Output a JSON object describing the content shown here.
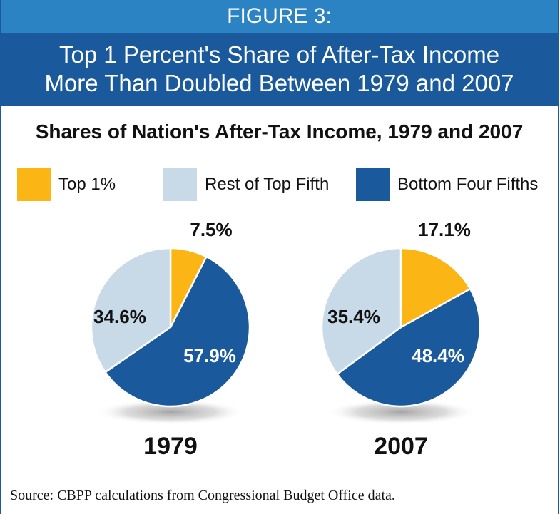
{
  "header": {
    "figure_label": "FIGURE 3:",
    "title_line1": "Top 1 Percent's Share of After-Tax Income",
    "title_line2": "More Than Doubled Between 1979 and 2007"
  },
  "chart_data": {
    "type": "pie",
    "title": "Shares of Nation's After-Tax Income, 1979 and 2007",
    "legend_placement": "top",
    "categories": [
      "Top 1%",
      "Rest of Top Fifth",
      "Bottom Four Fifths"
    ],
    "colors": {
      "Top 1%": "#fbb615",
      "Rest of Top Fifth": "#c8d9e8",
      "Bottom Four Fifths": "#1a5a9c"
    },
    "pies": [
      {
        "year": "1979",
        "slices": [
          {
            "category": "Top 1%",
            "value": 7.5,
            "label": "7.5%"
          },
          {
            "category": "Bottom Four Fifths",
            "value": 57.9,
            "label": "57.9%"
          },
          {
            "category": "Rest of Top Fifth",
            "value": 34.6,
            "label": "34.6%"
          }
        ]
      },
      {
        "year": "2007",
        "slices": [
          {
            "category": "Top 1%",
            "value": 17.1,
            "label": "17.1%"
          },
          {
            "category": "Bottom Four Fifths",
            "value": 48.4,
            "label": "48.4%"
          },
          {
            "category": "Rest of Top Fifth",
            "value": 35.4,
            "label": "35.4%"
          }
        ]
      }
    ]
  },
  "source": "Source: CBPP calculations from Congressional Budget Office data."
}
